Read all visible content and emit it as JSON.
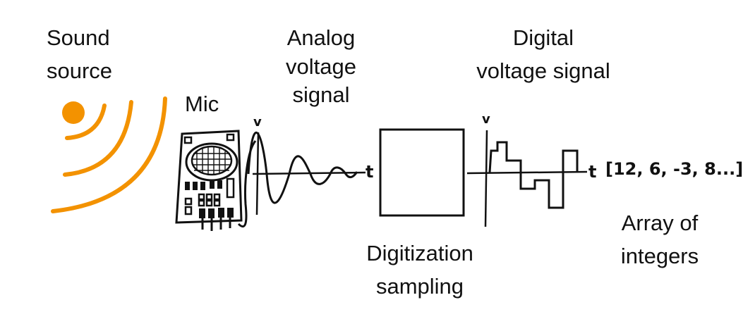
{
  "colors": {
    "accent": "#f39200",
    "ink": "#111111"
  },
  "labels": {
    "sound_source_line1": "Sound",
    "sound_source_line2": "source",
    "mic": "Mic",
    "analog_line1": "Analog",
    "analog_line2": "voltage",
    "analog_line3": "signal",
    "digital_line1": "Digital",
    "digital_line2": "voltage signal",
    "digitization_line1": "Digitization",
    "digitization_line2": "sampling",
    "array_line1": "Array of",
    "array_line2": "integers",
    "array_values": "[12, 6, -3, 8...]",
    "axis_v": "v",
    "axis_t": "t"
  }
}
